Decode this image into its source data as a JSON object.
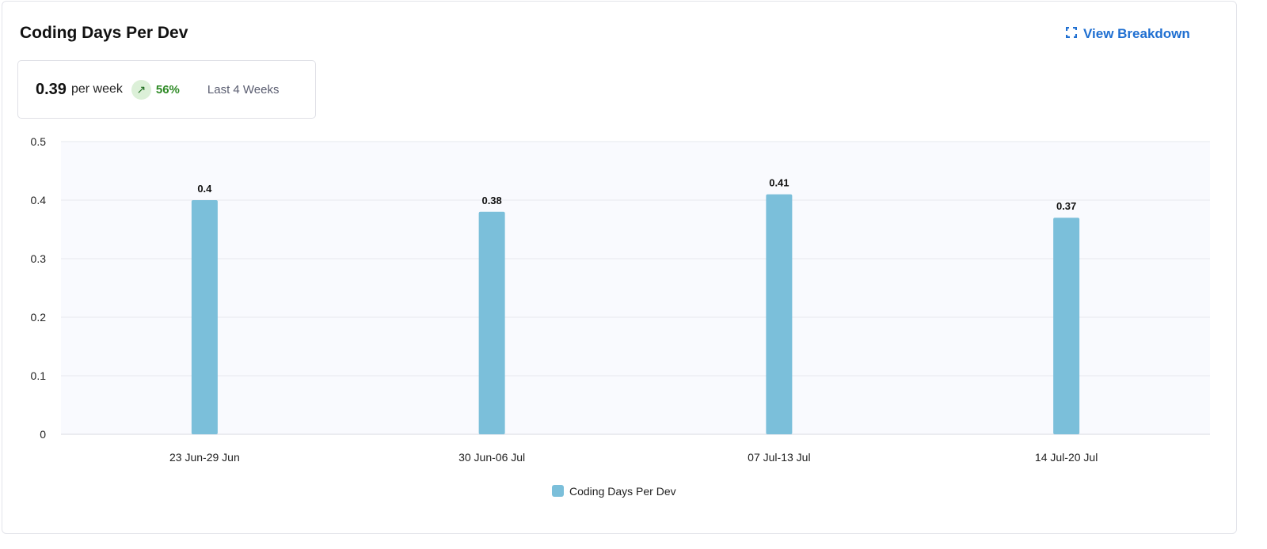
{
  "header": {
    "title": "Coding Days Per Dev",
    "view_breakdown": "View Breakdown",
    "view_breakdown_icon": "expand-icon"
  },
  "summary": {
    "value": "0.39",
    "unit": "per week",
    "trend_icon": "arrow-up-right-icon",
    "change": "56%",
    "period": "Last 4 Weeks",
    "trend_color": "#2e8a25"
  },
  "chart_data": {
    "type": "bar",
    "categories": [
      "23 Jun-29 Jun",
      "30 Jun-06 Jul",
      "07 Jul-13 Jul",
      "14 Jul-20 Jul"
    ],
    "series": [
      {
        "name": "Coding Days Per Dev",
        "values": [
          0.4,
          0.38,
          0.41,
          0.37
        ],
        "color": "#7bbfda"
      }
    ],
    "data_labels": [
      "0.4",
      "0.38",
      "0.41",
      "0.37"
    ],
    "yticks": [
      "0",
      "0.1",
      "0.2",
      "0.3",
      "0.4",
      "0.5"
    ],
    "ylim": [
      0,
      0.5
    ],
    "grid": true,
    "legend": "bottom"
  }
}
